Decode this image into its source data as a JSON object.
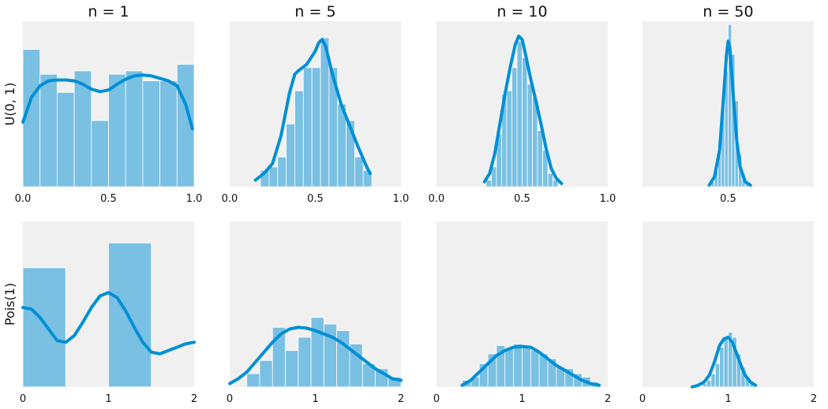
{
  "colors": {
    "bar": "#7ac0e3",
    "line": "#008fd5",
    "panel": "#f0f0f0"
  },
  "chart_data": [
    {
      "type": "bar",
      "row": 0,
      "col": 0,
      "title": "n = 1",
      "row_label": "U(0, 1)",
      "xlim": [
        0,
        1
      ],
      "xticks": [
        "0.0",
        "0.5",
        "1.0"
      ],
      "ylim": [
        0,
        1.0
      ],
      "bin_edges": [
        0.0,
        0.1,
        0.2,
        0.3,
        0.4,
        0.5,
        0.6,
        0.7,
        0.8,
        0.9,
        1.0
      ],
      "bars": [
        0.83,
        0.68,
        0.57,
        0.7,
        0.4,
        0.68,
        0.7,
        0.64,
        0.64,
        0.74
      ],
      "kde_x": [
        0.0,
        0.05,
        0.1,
        0.15,
        0.2,
        0.25,
        0.3,
        0.35,
        0.4,
        0.45,
        0.5,
        0.55,
        0.6,
        0.65,
        0.7,
        0.75,
        0.8,
        0.85,
        0.9,
        0.95,
        0.99
      ],
      "kde_y": [
        0.39,
        0.54,
        0.61,
        0.64,
        0.645,
        0.645,
        0.64,
        0.62,
        0.59,
        0.575,
        0.585,
        0.62,
        0.65,
        0.67,
        0.675,
        0.67,
        0.655,
        0.64,
        0.61,
        0.5,
        0.35
      ]
    },
    {
      "type": "bar",
      "row": 0,
      "col": 1,
      "title": "n = 5",
      "xlim": [
        0,
        1
      ],
      "xticks": [
        "0.0",
        "0.5",
        "1.0"
      ],
      "ylim": [
        0,
        1.0
      ],
      "bin_edges": [
        0.18,
        0.23,
        0.28,
        0.33,
        0.38,
        0.43,
        0.48,
        0.53,
        0.58,
        0.63,
        0.68,
        0.73,
        0.78,
        0.83
      ],
      "bars": [
        0.1,
        0.12,
        0.18,
        0.38,
        0.58,
        0.72,
        0.72,
        0.9,
        0.72,
        0.5,
        0.4,
        0.18,
        0.1
      ],
      "kde_x": [
        0.15,
        0.2,
        0.25,
        0.3,
        0.35,
        0.38,
        0.4,
        0.45,
        0.5,
        0.52,
        0.54,
        0.56,
        0.6,
        0.65,
        0.7,
        0.75,
        0.8,
        0.82
      ],
      "kde_y": [
        0.04,
        0.08,
        0.14,
        0.31,
        0.57,
        0.68,
        0.7,
        0.74,
        0.82,
        0.87,
        0.89,
        0.85,
        0.68,
        0.5,
        0.37,
        0.24,
        0.12,
        0.08
      ]
    },
    {
      "type": "bar",
      "row": 0,
      "col": 2,
      "title": "n = 10",
      "xlim": [
        0,
        1
      ],
      "xticks": [
        "0.0",
        "0.5",
        "1.0"
      ],
      "ylim": [
        0,
        1.0
      ],
      "bin_edges": [
        0.29,
        0.32,
        0.35,
        0.38,
        0.41,
        0.44,
        0.47,
        0.5,
        0.53,
        0.56,
        0.59,
        0.62,
        0.65,
        0.68,
        0.71
      ],
      "bars": [
        0.04,
        0.12,
        0.32,
        0.56,
        0.58,
        0.72,
        0.88,
        0.78,
        0.62,
        0.54,
        0.34,
        0.22,
        0.08,
        0.04
      ],
      "kde_x": [
        0.28,
        0.31,
        0.34,
        0.37,
        0.4,
        0.43,
        0.46,
        0.48,
        0.5,
        0.52,
        0.55,
        0.58,
        0.61,
        0.64,
        0.67,
        0.7,
        0.73
      ],
      "kde_y": [
        0.03,
        0.08,
        0.2,
        0.38,
        0.56,
        0.72,
        0.86,
        0.91,
        0.89,
        0.8,
        0.65,
        0.52,
        0.38,
        0.23,
        0.11,
        0.05,
        0.02
      ]
    },
    {
      "type": "bar",
      "row": 0,
      "col": 3,
      "title": "n = 50",
      "xlim": [
        0,
        1
      ],
      "xticks": [
        "0.5"
      ],
      "xtick_values": [
        0.5
      ],
      "ylim": [
        0,
        1.0
      ],
      "bin_edges": [
        0.4,
        0.42,
        0.44,
        0.46,
        0.48,
        0.5,
        0.52,
        0.54,
        0.56,
        0.58,
        0.6,
        0.62
      ],
      "bars": [
        0.03,
        0.1,
        0.24,
        0.48,
        0.7,
        0.98,
        0.8,
        0.52,
        0.2,
        0.08,
        0.03
      ],
      "kde_x": [
        0.39,
        0.42,
        0.45,
        0.47,
        0.49,
        0.5,
        0.51,
        0.53,
        0.55,
        0.57,
        0.6,
        0.63
      ],
      "kde_y": [
        0.01,
        0.06,
        0.22,
        0.5,
        0.79,
        0.88,
        0.84,
        0.55,
        0.28,
        0.12,
        0.03,
        0.01
      ]
    },
    {
      "type": "bar",
      "row": 1,
      "col": 0,
      "row_label": "Pois(1)",
      "xlim": [
        0,
        2
      ],
      "xticks": [
        "0",
        "1",
        "2"
      ],
      "ylim": [
        0,
        1.0
      ],
      "bin_edges": [
        0.0,
        0.5,
        1.0,
        1.5
      ],
      "bars": [
        0.72,
        0.0,
        0.87
      ],
      "kde_x": [
        0.0,
        0.1,
        0.2,
        0.3,
        0.4,
        0.5,
        0.6,
        0.7,
        0.8,
        0.9,
        1.0,
        1.1,
        1.2,
        1.3,
        1.4,
        1.5,
        1.6,
        1.7,
        1.8,
        1.9,
        2.0
      ],
      "kde_y": [
        0.48,
        0.47,
        0.42,
        0.35,
        0.28,
        0.27,
        0.31,
        0.39,
        0.48,
        0.55,
        0.57,
        0.54,
        0.46,
        0.36,
        0.27,
        0.21,
        0.2,
        0.22,
        0.24,
        0.26,
        0.27
      ]
    },
    {
      "type": "bar",
      "row": 1,
      "col": 1,
      "xlim": [
        0,
        2
      ],
      "xticks": [
        "0",
        "2"
      ],
      "xtick_values": [
        0,
        2
      ],
      "xtick_centre_label": "1",
      "ylim": [
        0,
        1.0
      ],
      "bin_edges": [
        0.2,
        0.35,
        0.5,
        0.65,
        0.8,
        0.95,
        1.1,
        1.25,
        1.4,
        1.55,
        1.7,
        1.85,
        2.0
      ],
      "bars": [
        0.08,
        0.16,
        0.36,
        0.22,
        0.3,
        0.42,
        0.38,
        0.34,
        0.26,
        0.14,
        0.11,
        0.06
      ],
      "kde_x": [
        0.0,
        0.1,
        0.2,
        0.3,
        0.4,
        0.5,
        0.6,
        0.7,
        0.8,
        0.9,
        1.0,
        1.1,
        1.2,
        1.3,
        1.4,
        1.5,
        1.6,
        1.7,
        1.8,
        1.9,
        2.0
      ],
      "kde_y": [
        0.02,
        0.05,
        0.09,
        0.15,
        0.21,
        0.27,
        0.32,
        0.35,
        0.36,
        0.355,
        0.34,
        0.32,
        0.3,
        0.27,
        0.23,
        0.19,
        0.15,
        0.11,
        0.08,
        0.05,
        0.04
      ]
    },
    {
      "type": "bar",
      "row": 1,
      "col": 2,
      "xlim": [
        0,
        2
      ],
      "xticks": [
        "0",
        "1",
        "2"
      ],
      "ylim": [
        0,
        1.0
      ],
      "bin_edges": [
        0.3,
        0.4,
        0.5,
        0.6,
        0.7,
        0.8,
        0.9,
        1.0,
        1.1,
        1.2,
        1.3,
        1.4,
        1.5,
        1.6,
        1.7,
        1.8,
        1.9
      ],
      "bars": [
        0.04,
        0.06,
        0.14,
        0.2,
        0.25,
        0.23,
        0.26,
        0.25,
        0.22,
        0.2,
        0.17,
        0.12,
        0.11,
        0.08,
        0.06,
        0.03
      ],
      "kde_x": [
        0.3,
        0.4,
        0.5,
        0.6,
        0.7,
        0.8,
        0.9,
        1.0,
        1.1,
        1.2,
        1.3,
        1.4,
        1.5,
        1.6,
        1.7,
        1.8,
        1.9
      ],
      "kde_y": [
        0.01,
        0.04,
        0.09,
        0.14,
        0.19,
        0.22,
        0.24,
        0.245,
        0.24,
        0.21,
        0.17,
        0.13,
        0.1,
        0.07,
        0.04,
        0.02,
        0.01
      ]
    },
    {
      "type": "bar",
      "row": 1,
      "col": 3,
      "xlim": [
        0,
        2
      ],
      "xticks": [
        "0",
        "1",
        "2"
      ],
      "ylim": [
        0,
        1.0
      ],
      "bin_edges": [
        0.7,
        0.75,
        0.8,
        0.85,
        0.9,
        0.95,
        1.0,
        1.05,
        1.1,
        1.15,
        1.2,
        1.25,
        1.3
      ],
      "bars": [
        0.02,
        0.04,
        0.08,
        0.14,
        0.24,
        0.3,
        0.33,
        0.3,
        0.2,
        0.12,
        0.06,
        0.03
      ],
      "kde_x": [
        0.58,
        0.65,
        0.72,
        0.78,
        0.84,
        0.9,
        0.95,
        1.0,
        1.05,
        1.1,
        1.15,
        1.2,
        1.26,
        1.32
      ],
      "kde_y": [
        0.0,
        0.01,
        0.03,
        0.07,
        0.15,
        0.25,
        0.29,
        0.3,
        0.27,
        0.2,
        0.13,
        0.07,
        0.03,
        0.01
      ]
    }
  ]
}
